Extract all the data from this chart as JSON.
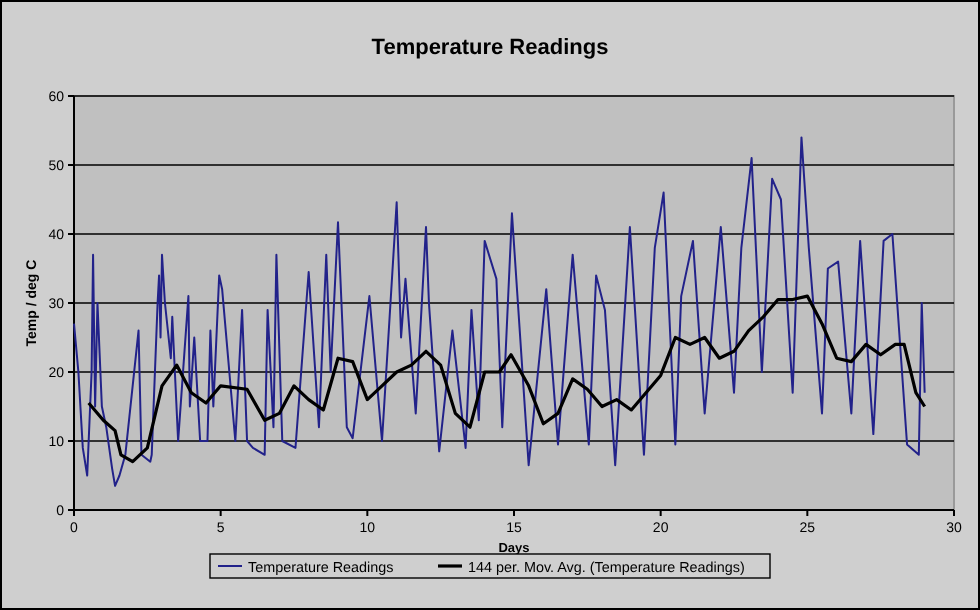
{
  "chart_data": {
    "type": "line",
    "title": "Temperature Readings",
    "xlabel": "Days",
    "ylabel": "Temp / deg C",
    "xlim": [
      0,
      30
    ],
    "xticks": [
      0,
      5,
      10,
      15,
      20,
      25,
      30
    ],
    "ylim": [
      0,
      60
    ],
    "yticks": [
      0,
      10,
      20,
      30,
      40,
      50,
      60
    ],
    "grid": "y",
    "legend": "bottom",
    "marker": "none",
    "line_style": "solid",
    "series": [
      {
        "name": "Temperature Readings",
        "color": "#22228a",
        "x": [
          0,
          0.15,
          0.3,
          0.45,
          0.6,
          0.65,
          0.72,
          0.8,
          0.95,
          1.1,
          1.3,
          1.4,
          1.55,
          1.75,
          2.2,
          2.3,
          2.6,
          2.65,
          2.85,
          2.9,
          2.95,
          3.0,
          3.1,
          3.3,
          3.35,
          3.55,
          3.9,
          3.95,
          4.1,
          4.3,
          4.55,
          4.65,
          4.75,
          4.95,
          5.05,
          5.5,
          5.73,
          5.9,
          6.1,
          6.5,
          6.6,
          6.8,
          6.9,
          7.1,
          7.55,
          8.0,
          8.35,
          8.6,
          8.75,
          9.0,
          9.3,
          9.5,
          10.07,
          10.5,
          11.0,
          11.15,
          11.3,
          11.65,
          12.0,
          12.1,
          12.45,
          12.9,
          13.35,
          13.55,
          13.8,
          14.0,
          14.4,
          14.6,
          14.93,
          15.5,
          16.1,
          16.5,
          17.0,
          17.55,
          17.8,
          18.1,
          18.45,
          18.95,
          19.43,
          19.8,
          20.1,
          20.5,
          20.7,
          21.1,
          21.5,
          22.05,
          22.5,
          22.75,
          23.1,
          23.45,
          23.8,
          24.1,
          24.5,
          24.8,
          25.05,
          25.5,
          25.7,
          26.05,
          26.5,
          26.8,
          27.25,
          27.6,
          27.9,
          28.4,
          28.8,
          28.9,
          29.0
        ],
        "values": [
          27,
          20,
          9,
          5,
          20,
          37,
          15,
          30,
          15,
          12,
          6,
          3.5,
          5,
          8,
          26,
          8,
          7,
          8,
          30,
          34,
          25,
          37,
          30,
          22,
          28,
          10,
          31,
          15,
          25,
          10,
          10,
          26,
          15,
          34,
          32,
          10,
          29,
          10,
          9,
          8,
          29,
          12,
          37,
          10,
          9,
          34.5,
          12,
          37,
          20,
          41.7,
          12,
          10.4,
          31,
          10,
          44.6,
          25,
          33.5,
          14,
          41,
          30,
          8.5,
          26,
          9,
          29,
          13,
          39,
          33.5,
          12,
          43,
          6.5,
          32,
          9.5,
          37,
          9.5,
          34,
          29,
          6.5,
          41,
          8,
          38,
          46,
          9.5,
          31,
          39,
          14,
          41,
          17,
          38,
          51,
          20,
          48,
          45,
          17,
          54,
          38,
          14,
          35,
          36,
          14,
          39,
          11,
          39,
          40,
          9.5,
          8,
          30,
          17
        ]
      },
      {
        "name": "144 per. Mov. Avg. (Temperature Readings)",
        "color": "#000000",
        "x": [
          0.5,
          1,
          1.4,
          1.6,
          2,
          2.5,
          3,
          3.5,
          4,
          4.5,
          5,
          5.9,
          6.5,
          7,
          7.5,
          8,
          8.5,
          9,
          9.5,
          10,
          10.5,
          11,
          11.5,
          12,
          12.5,
          13,
          13.5,
          14,
          14.5,
          14.9,
          15.5,
          16,
          16.5,
          17,
          17.5,
          18,
          18.5,
          19,
          20,
          20.5,
          21,
          21.5,
          22,
          22.5,
          23,
          23.5,
          24,
          24.5,
          25,
          25.5,
          26,
          26.5,
          27,
          27.5,
          28,
          28.3,
          28.7,
          29
        ],
        "values": [
          15.5,
          13,
          11.5,
          8,
          7,
          9,
          18,
          21,
          17,
          15.5,
          18,
          17.5,
          13,
          14,
          18,
          16,
          14.5,
          22,
          21.5,
          16,
          18,
          20,
          21,
          23,
          21,
          14,
          12,
          20,
          20,
          22.5,
          18,
          12.5,
          14,
          19,
          17.5,
          15,
          16,
          14.5,
          19.5,
          25,
          24,
          25,
          22,
          23,
          26,
          28,
          30.5,
          30.5,
          31,
          27,
          22,
          21.5,
          24,
          22.5,
          24,
          24,
          17,
          15
        ]
      }
    ]
  }
}
